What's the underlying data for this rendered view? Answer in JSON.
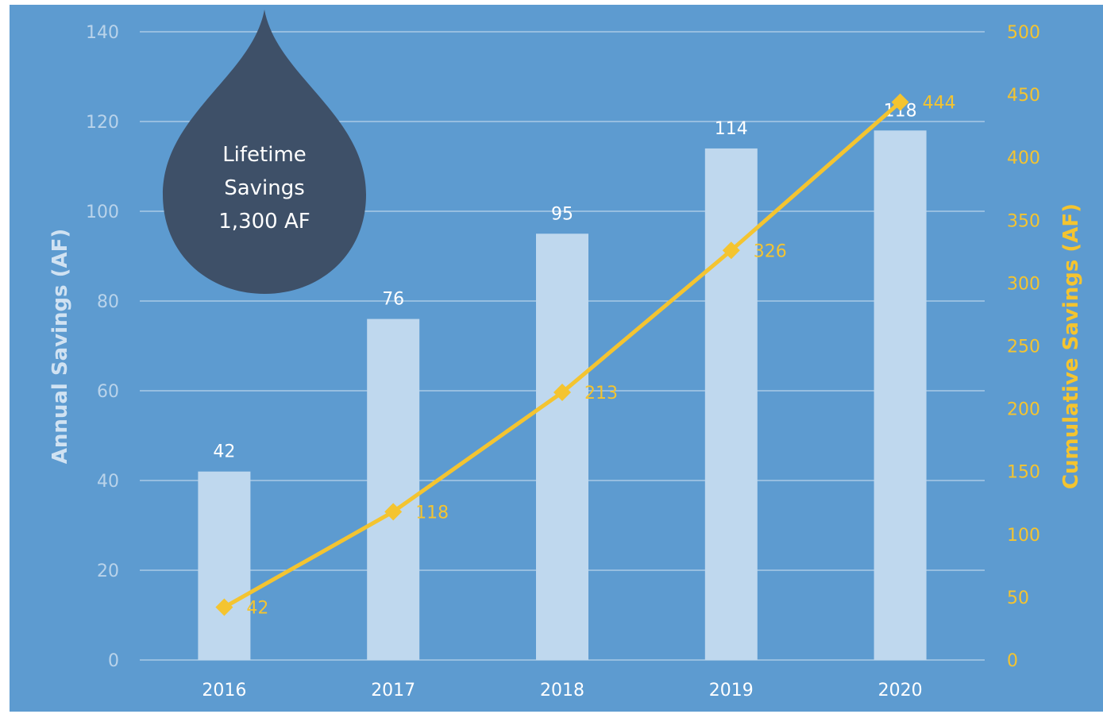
{
  "chart_data": {
    "type": "bar",
    "categories": [
      "2016",
      "2017",
      "2018",
      "2019",
      "2020"
    ],
    "series": [
      {
        "chart_type": "bar",
        "axis": "left",
        "values": [
          42,
          76,
          95,
          114,
          118
        ],
        "color": "#bfd8ee"
      },
      {
        "chart_type": "line",
        "axis": "right",
        "values": [
          42,
          118,
          213,
          326,
          444
        ],
        "color": "#f4c430",
        "marker": "diamond"
      }
    ],
    "ylabel": "Annual Savings (AF)",
    "y2label": "Cumulative Savings (AF)",
    "ylim": [
      0,
      140
    ],
    "y2lim": [
      0,
      500
    ],
    "yticks": [
      "0",
      "20",
      "40",
      "60",
      "80",
      "100",
      "120",
      "140"
    ],
    "y2ticks": [
      "0",
      "50",
      "100",
      "150",
      "200",
      "250",
      "300",
      "350",
      "400",
      "450",
      "500"
    ],
    "grid": true,
    "legend": "none",
    "callout": {
      "line1": "Lifetime",
      "line2": "Savings",
      "line3": "1,300 AF",
      "shape": "water-drop",
      "color": "#3e5068"
    }
  }
}
